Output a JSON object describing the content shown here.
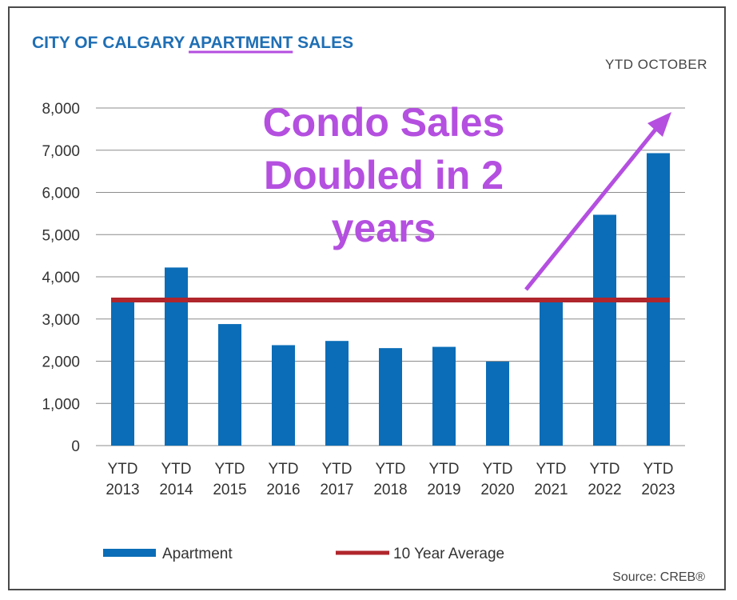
{
  "title": {
    "part1": "CITY OF CALGARY ",
    "part2": "APARTMENT",
    "part3": " SALES"
  },
  "subtitle": "YTD  OCTOBER",
  "annotation": [
    "Condo Sales",
    "Doubled in 2",
    "years"
  ],
  "source": "Source: CREB®",
  "colors": {
    "bar": "#0b6db7",
    "average": "#b0262c",
    "annotation": "#b44fe0",
    "title": "#1f6fb5"
  },
  "chart_data": {
    "type": "bar",
    "categories": [
      [
        "YTD",
        "2013"
      ],
      [
        "YTD",
        "2014"
      ],
      [
        "YTD",
        "2015"
      ],
      [
        "YTD",
        "2016"
      ],
      [
        "YTD",
        "2017"
      ],
      [
        "YTD",
        "2018"
      ],
      [
        "YTD",
        "2019"
      ],
      [
        "YTD",
        "2020"
      ],
      [
        "YTD",
        "2021"
      ],
      [
        "YTD",
        "2022"
      ],
      [
        "YTD",
        "2023"
      ]
    ],
    "series": [
      {
        "name": "Apartment",
        "values": [
          3500,
          4220,
          2880,
          2380,
          2480,
          2310,
          2340,
          1990,
          3440,
          5470,
          6930
        ]
      },
      {
        "name": "10 Year Average",
        "type": "line",
        "values": [
          3450,
          3450,
          3450,
          3450,
          3450,
          3450,
          3450,
          3450,
          3450,
          3450,
          3450
        ]
      }
    ],
    "yticks": [
      "0",
      "1,000",
      "2,000",
      "3,000",
      "4,000",
      "5,000",
      "6,000",
      "7,000",
      "8,000"
    ],
    "ylim": [
      0,
      8000
    ],
    "grid": true,
    "legend_position": "bottom"
  }
}
